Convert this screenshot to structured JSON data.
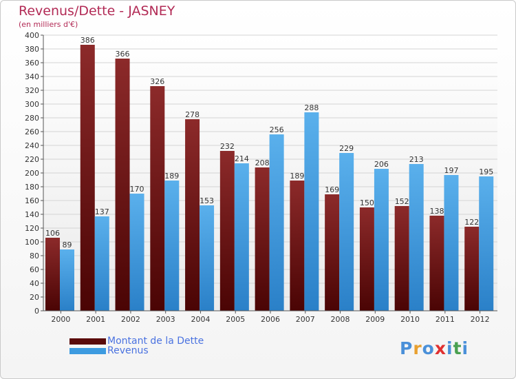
{
  "header": {
    "title": "Revenus/Dette - JASNEY",
    "subtitle": "(en milliers d'€)"
  },
  "chart_data": {
    "type": "bar",
    "categories": [
      "2000",
      "2001",
      "2002",
      "2003",
      "2004",
      "2005",
      "2006",
      "2007",
      "2008",
      "2009",
      "2010",
      "2011",
      "2012"
    ],
    "series": [
      {
        "name": "Montant de la Dette",
        "color": "#7a1515",
        "values": [
          106,
          386,
          366,
          326,
          278,
          232,
          208,
          189,
          169,
          150,
          152,
          138,
          122
        ]
      },
      {
        "name": "Revenus",
        "color": "#3d9be0",
        "values": [
          89,
          137,
          170,
          189,
          153,
          214,
          256,
          288,
          229,
          206,
          213,
          197,
          195
        ]
      }
    ],
    "ylim": [
      0,
      400
    ],
    "ytick_step": 20,
    "grid": true,
    "legend": "bottom-left"
  },
  "legend": {
    "items": [
      {
        "label": "Montant de la Dette",
        "color": "#5a0a0a"
      },
      {
        "label": "Revenus",
        "color": "#3d9be0"
      }
    ]
  },
  "logo": {
    "text": "Proxiti",
    "colors": [
      "#4a90d9",
      "#e8a030",
      "#4a90d9",
      "#e03030",
      "#4a90d9",
      "#4aa050",
      "#4a90d9"
    ]
  }
}
